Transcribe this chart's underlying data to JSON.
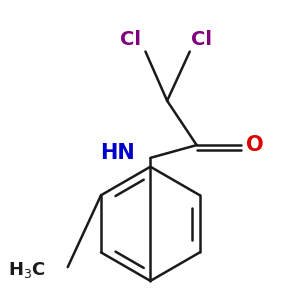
{
  "background_color": "#ffffff",
  "bond_color": "#1a1a1a",
  "cl_color": "#800080",
  "o_color": "#dd0000",
  "n_color": "#0000cc",
  "ch3_color": "#1a1a1a",
  "bond_lw": 1.8,
  "fig_size": [
    3.0,
    3.0
  ],
  "dpi": 100,
  "cl1_label": "Cl",
  "cl2_label": "Cl",
  "o_label": "O",
  "hn_label": "HN",
  "ch3_label": "H$_3$C"
}
